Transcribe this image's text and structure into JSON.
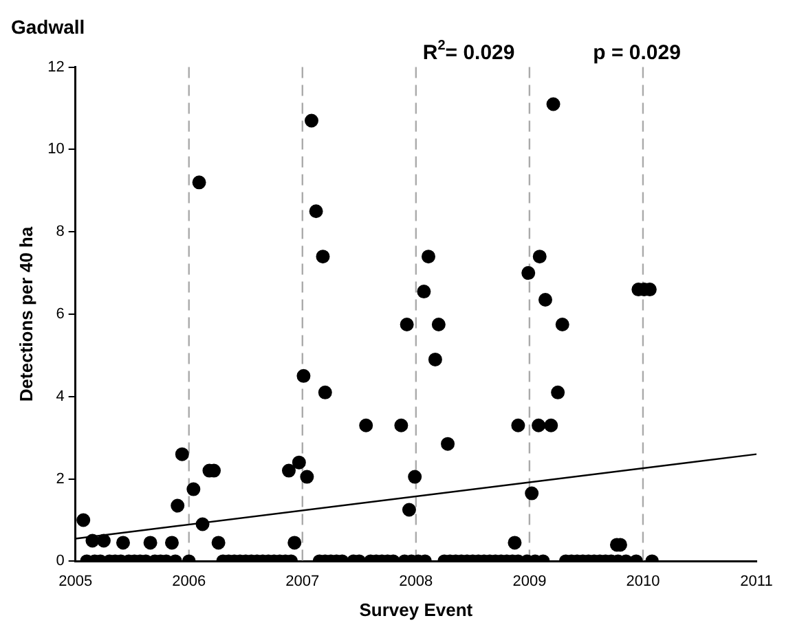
{
  "chart_data": {
    "type": "scatter",
    "title": "Gadwall",
    "xlabel": "Survey Event",
    "ylabel": "Detections per 40 ha",
    "annotations": [
      "R$^{2}$= 0.029",
      "p = 0.029"
    ],
    "xlim": [
      2005,
      2011
    ],
    "xticks": [
      2005,
      2006,
      2007,
      2008,
      2009,
      2010,
      2011
    ],
    "ylim": [
      0,
      12
    ],
    "yticks": [
      0,
      2,
      4,
      6,
      8,
      10,
      12
    ],
    "grid": false,
    "legend": false,
    "marker": "circle",
    "ref_lines": [
      {
        "axis": "x",
        "value": 2006,
        "color": "#aaaaaa",
        "line_style": "dashed"
      },
      {
        "axis": "x",
        "value": 2007,
        "color": "#aaaaaa",
        "line_style": "dashed"
      },
      {
        "axis": "x",
        "value": 2008,
        "color": "#aaaaaa",
        "line_style": "dashed"
      },
      {
        "axis": "x",
        "value": 2009,
        "color": "#aaaaaa",
        "line_style": "dashed"
      },
      {
        "axis": "x",
        "value": 2010,
        "color": "#aaaaaa",
        "line_style": "dashed"
      }
    ],
    "series": [
      {
        "color": "#000000",
        "x": [
          2005.07,
          2005.15,
          2005.25,
          2005.42,
          2005.66,
          2005.85,
          2005.9,
          2005.94,
          2006.04,
          2006.09,
          2006.12,
          2006.18,
          2006.22,
          2006.26,
          2006.88,
          2006.93,
          2006.97,
          2007.01,
          2007.04,
          2007.08,
          2007.12,
          2007.18,
          2007.2,
          2007.56,
          2007.87,
          2007.92,
          2007.94,
          2007.99,
          2008.07,
          2008.11,
          2008.17,
          2008.2,
          2008.28,
          2008.87,
          2008.9,
          2008.99,
          2009.02,
          2009.08,
          2009.09,
          2009.14,
          2009.19,
          2009.21,
          2009.25,
          2009.29,
          2009.77,
          2009.8,
          2009.96,
          2010.01,
          2010.06,
          2005.1,
          2005.17,
          2005.22,
          2005.3,
          2005.35,
          2005.4,
          2005.47,
          2005.52,
          2005.57,
          2005.62,
          2005.7,
          2005.75,
          2005.8,
          2005.88,
          2006.0,
          2006.3,
          2006.35,
          2006.4,
          2006.45,
          2006.5,
          2006.55,
          2006.6,
          2006.65,
          2006.7,
          2006.75,
          2006.8,
          2006.85,
          2006.9,
          2007.15,
          2007.2,
          2007.25,
          2007.3,
          2007.35,
          2007.45,
          2007.5,
          2007.6,
          2007.65,
          2007.7,
          2007.75,
          2007.8,
          2007.9,
          2007.96,
          2008.02,
          2008.08,
          2008.25,
          2008.3,
          2008.35,
          2008.4,
          2008.45,
          2008.5,
          2008.55,
          2008.6,
          2008.65,
          2008.7,
          2008.75,
          2008.8,
          2008.85,
          2008.9,
          2008.98,
          2009.05,
          2009.12,
          2009.32,
          2009.37,
          2009.42,
          2009.47,
          2009.52,
          2009.57,
          2009.62,
          2009.67,
          2009.72,
          2009.78,
          2009.85,
          2009.94,
          2010.08
        ],
        "values": [
          1.0,
          0.5,
          0.5,
          0.45,
          0.45,
          0.45,
          1.35,
          2.6,
          1.75,
          9.2,
          0.9,
          2.2,
          2.2,
          0.45,
          2.2,
          0.45,
          2.4,
          4.5,
          2.05,
          10.7,
          8.5,
          7.4,
          4.1,
          3.3,
          3.3,
          5.75,
          1.25,
          2.05,
          6.55,
          7.4,
          4.9,
          5.75,
          2.85,
          0.45,
          3.3,
          7.0,
          1.65,
          3.3,
          7.4,
          6.35,
          3.3,
          11.1,
          4.1,
          5.75,
          0.4,
          0.4,
          6.6,
          6.6,
          6.6,
          0,
          0,
          0,
          0,
          0,
          0,
          0,
          0,
          0,
          0,
          0,
          0,
          0,
          0,
          0,
          0,
          0,
          0,
          0,
          0,
          0,
          0,
          0,
          0,
          0,
          0,
          0,
          0,
          0,
          0,
          0,
          0,
          0,
          0,
          0,
          0,
          0,
          0,
          0,
          0,
          0,
          0,
          0,
          0,
          0,
          0,
          0,
          0,
          0,
          0,
          0,
          0,
          0,
          0,
          0,
          0,
          0,
          0,
          0,
          0,
          0,
          0,
          0,
          0,
          0,
          0,
          0,
          0,
          0,
          0,
          0,
          0,
          0,
          0
        ]
      },
      {
        "type": "line",
        "color": "#000000",
        "x": [
          2005,
          2011
        ],
        "values": [
          0.55,
          2.6
        ],
        "marker": "none"
      }
    ]
  }
}
